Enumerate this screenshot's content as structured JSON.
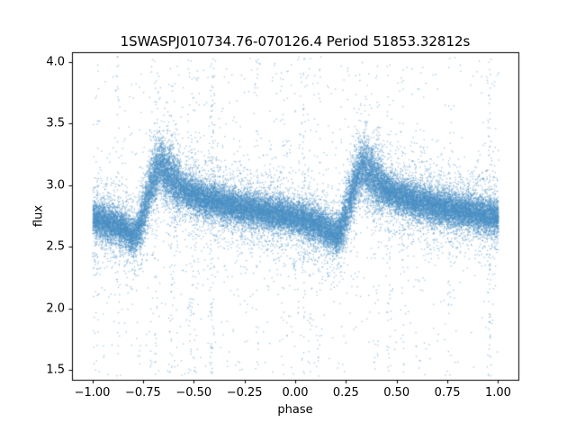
{
  "chart_data": {
    "type": "scatter",
    "title": "1SWASPJ010734.76-070126.4 Period 51853.32812s",
    "xlabel": "phase",
    "ylabel": "flux",
    "xlim": [
      -1.1,
      1.1
    ],
    "ylim": [
      1.42,
      4.08
    ],
    "x_range": [
      -1.0,
      1.0
    ],
    "xticks": {
      "values": [
        -1.0,
        -0.75,
        -0.5,
        -0.25,
        0.0,
        0.25,
        0.5,
        0.75,
        1.0
      ],
      "labels": [
        "−1.00",
        "−0.75",
        "−0.50",
        "−0.25",
        "0.00",
        "0.25",
        "0.50",
        "0.75",
        "1.00"
      ]
    },
    "yticks": {
      "values": [
        1.5,
        2.0,
        2.5,
        3.0,
        3.5,
        4.0
      ],
      "labels": [
        "1.5",
        "2.0",
        "2.5",
        "3.0",
        "3.5",
        "4.0"
      ]
    },
    "grid": false,
    "legend": null,
    "background": "#ffffff",
    "point_color": "#4a90c4",
    "point_alpha": 0.55,
    "point_size": 1.25,
    "n_points": 40000,
    "seed": 7,
    "period_profile": [
      [
        0.0,
        2.74
      ],
      [
        0.06,
        2.71
      ],
      [
        0.12,
        2.67
      ],
      [
        0.16,
        2.64
      ],
      [
        0.2,
        2.59
      ],
      [
        0.225,
        2.64
      ],
      [
        0.25,
        2.78
      ],
      [
        0.28,
        2.96
      ],
      [
        0.31,
        3.1
      ],
      [
        0.335,
        3.17
      ],
      [
        0.36,
        3.11
      ],
      [
        0.4,
        3.03
      ],
      [
        0.45,
        2.97
      ],
      [
        0.5,
        2.92
      ],
      [
        0.6,
        2.87
      ],
      [
        0.7,
        2.83
      ],
      [
        0.8,
        2.8
      ],
      [
        0.9,
        2.77
      ],
      [
        1.0,
        2.74
      ]
    ],
    "noise": {
      "core_sigma": 0.07,
      "tail_frac": 0.14,
      "tail_sigma": 0.2,
      "outlier_frac": 0.04,
      "outlier_range": [
        1.45,
        4.05
      ],
      "outlier_columns": 26,
      "rise_boost": {
        "from": 0.23,
        "to": 0.43,
        "sigma": 0.035
      }
    }
  }
}
